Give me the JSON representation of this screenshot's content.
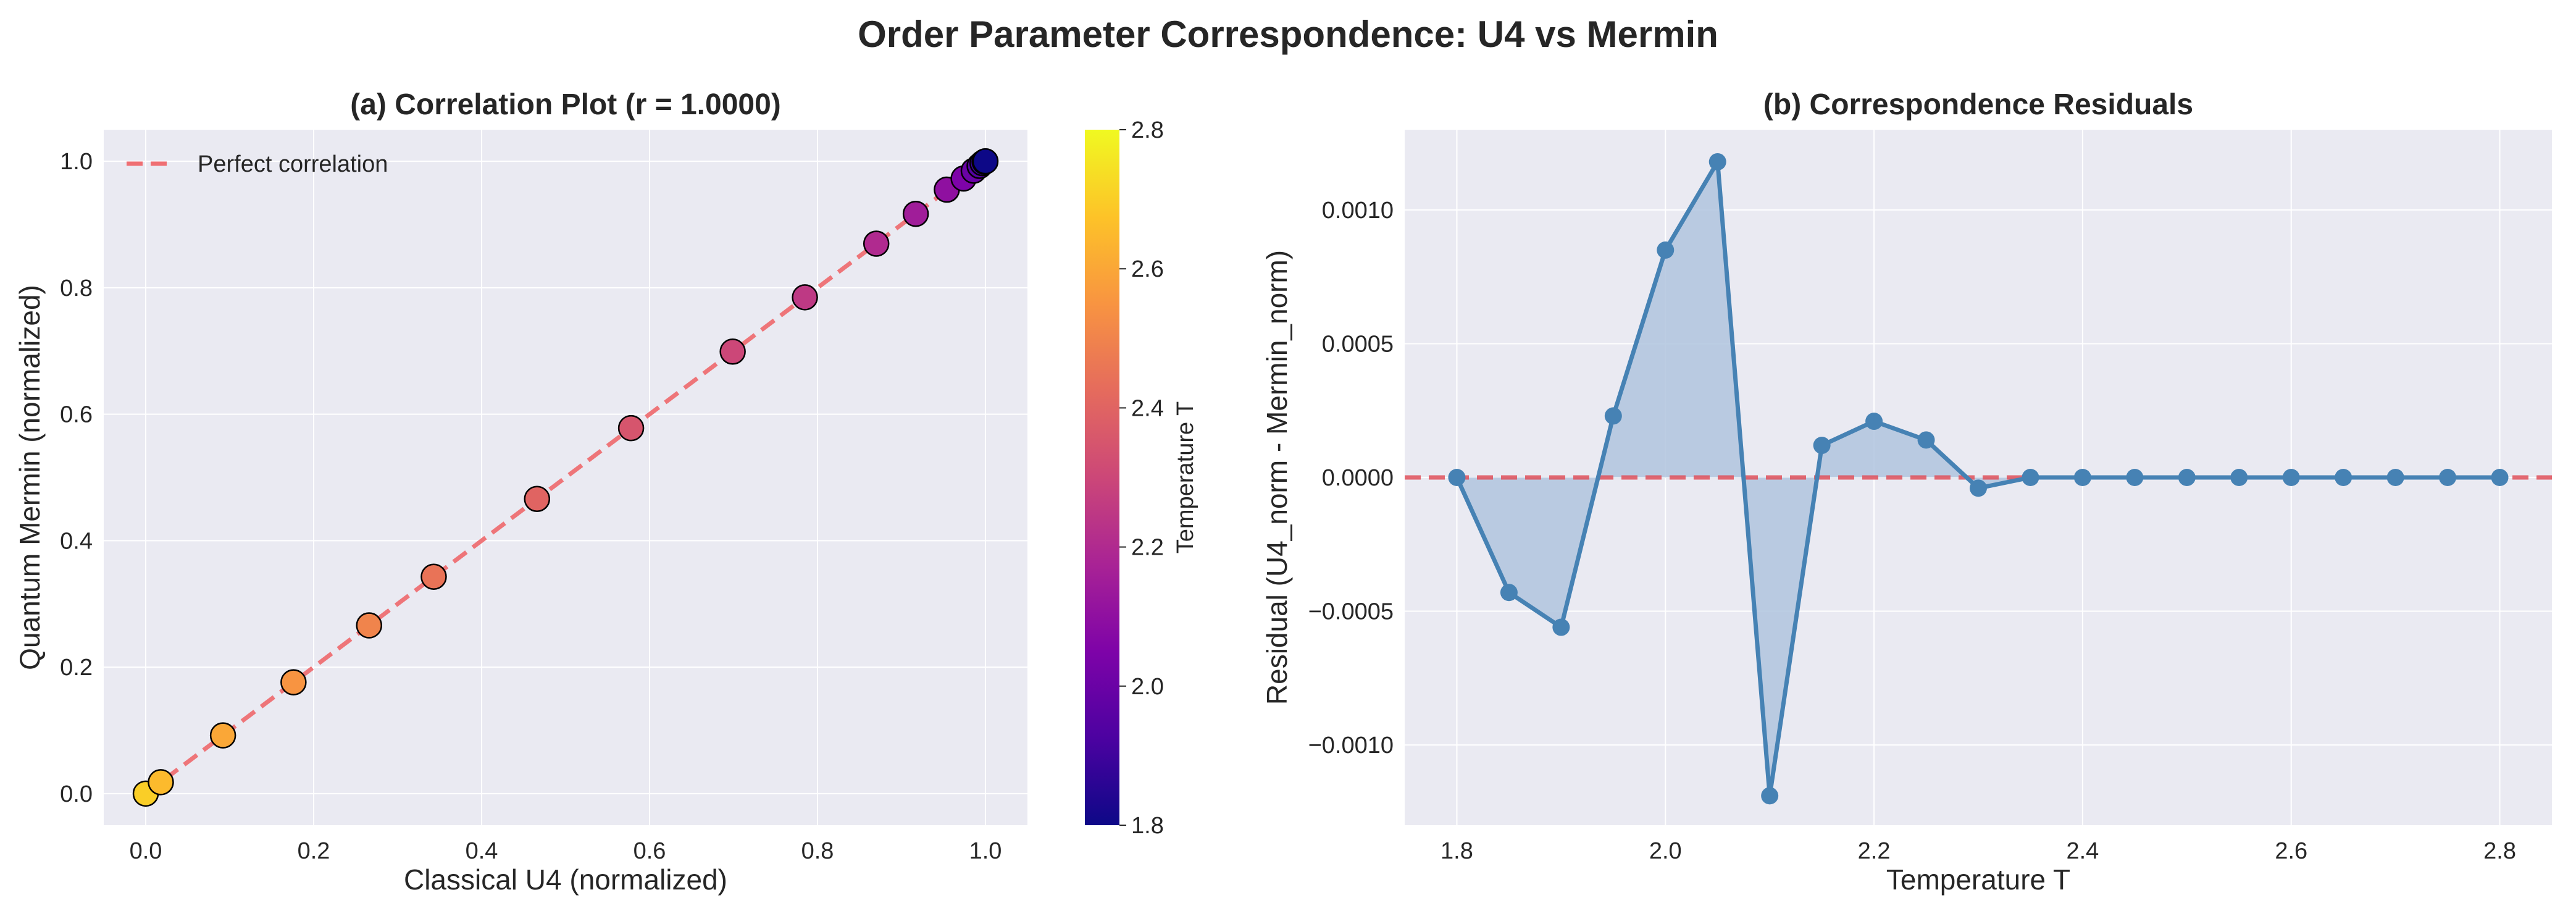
{
  "suptitle": "Order Parameter Correspondence: U4 vs Mermin",
  "colors": {
    "axes_bg": "#eaeaf2",
    "grid": "#ffffff",
    "fit_line": "#ef6f73",
    "residual_line": "#4682b4",
    "residual_fill": "#b0c4de",
    "zero_line": "#e0505a",
    "colormap": "plasma"
  },
  "chart_data": [
    {
      "type": "scatter",
      "title": "(a) Correlation Plot (r = 1.0000)",
      "xlabel": "Classical U4 (normalized)",
      "ylabel": "Quantum Mermin (normalized)",
      "xlim": [
        -0.05,
        1.05
      ],
      "ylim": [
        -0.05,
        1.05
      ],
      "xticks": [
        "0.0",
        "0.2",
        "0.4",
        "0.6",
        "0.8",
        "1.0"
      ],
      "yticks": [
        "0.0",
        "0.2",
        "0.4",
        "0.6",
        "0.8",
        "1.0"
      ],
      "grid": true,
      "legend": {
        "position": "top-left",
        "entries": [
          "Perfect correlation"
        ]
      },
      "reference_line": {
        "name": "Perfect correlation",
        "x": [
          0,
          1
        ],
        "y": [
          0,
          1
        ]
      },
      "colorbar": {
        "label": "Temperature T",
        "min": 1.8,
        "max": 2.8,
        "ticks": [
          "1.8",
          "2.0",
          "2.2",
          "2.4",
          "2.6",
          "2.8"
        ]
      },
      "points": [
        {
          "t": 1.8,
          "x": 1.0,
          "y": 1.0
        },
        {
          "t": 1.85,
          "x": 0.999,
          "y": 0.9994
        },
        {
          "t": 1.9,
          "x": 0.9965,
          "y": 0.9971
        },
        {
          "t": 1.95,
          "x": 0.993,
          "y": 0.9928
        },
        {
          "t": 2.0,
          "x": 0.986,
          "y": 0.9852
        },
        {
          "t": 2.05,
          "x": 0.974,
          "y": 0.9728
        },
        {
          "t": 2.1,
          "x": 0.954,
          "y": 0.9552
        },
        {
          "t": 2.15,
          "x": 0.917,
          "y": 0.9169
        },
        {
          "t": 2.2,
          "x": 0.87,
          "y": 0.8698
        },
        {
          "t": 2.25,
          "x": 0.785,
          "y": 0.7849
        },
        {
          "t": 2.3,
          "x": 0.699,
          "y": 0.699
        },
        {
          "t": 2.35,
          "x": 0.578,
          "y": 0.578
        },
        {
          "t": 2.4,
          "x": 0.466,
          "y": 0.466
        },
        {
          "t": 2.45,
          "x": 0.343,
          "y": 0.343
        },
        {
          "t": 2.5,
          "x": 0.266,
          "y": 0.266
        },
        {
          "t": 2.55,
          "x": 0.176,
          "y": 0.176
        },
        {
          "t": 2.6,
          "x": 0.092,
          "y": 0.092
        },
        {
          "t": 2.65,
          "x": 0.018,
          "y": 0.018
        },
        {
          "t": 2.7,
          "x": 0.0,
          "y": 0.0
        }
      ]
    },
    {
      "type": "line",
      "title": "(b) Correspondence Residuals",
      "xlabel": "Temperature T",
      "ylabel": "Residual (U4_norm - Mermin_norm)",
      "xlim": [
        1.75,
        2.85
      ],
      "ylim": [
        -0.0013,
        0.0013
      ],
      "xticks": [
        "1.8",
        "2.0",
        "2.2",
        "2.4",
        "2.6",
        "2.8"
      ],
      "yticks": [
        "−0.0010",
        "−0.0005",
        "0.0000",
        "0.0005",
        "0.0010"
      ],
      "grid": true,
      "zero_line": true,
      "x": [
        1.8,
        1.85,
        1.9,
        1.95,
        2.0,
        2.05,
        2.1,
        2.15,
        2.2,
        2.25,
        2.3,
        2.35,
        2.4,
        2.45,
        2.5,
        2.55,
        2.6,
        2.65,
        2.7,
        2.75,
        2.8
      ],
      "y": [
        0.0,
        -0.00043,
        -0.00056,
        0.00023,
        0.00085,
        0.00118,
        -0.00119,
        0.00012,
        0.00021,
        0.00014,
        -4e-05,
        0.0,
        0.0,
        0.0,
        0.0,
        0.0,
        0.0,
        0.0,
        0.0,
        0.0,
        0.0
      ]
    }
  ]
}
